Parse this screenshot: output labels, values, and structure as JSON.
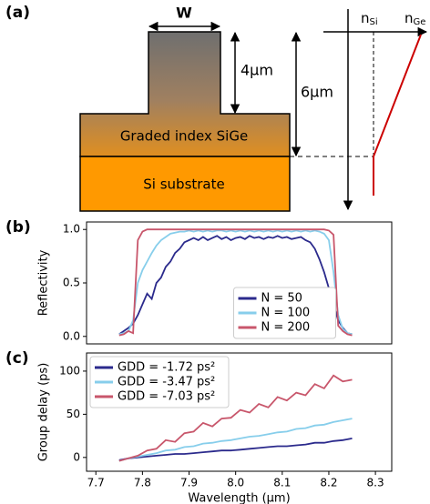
{
  "diagram": {
    "panel_label": "(a)",
    "width_label": "W",
    "ridge_height_label": "4μm",
    "total_height_label": "6μm",
    "graded_layer_label": "Graded index SiGe",
    "substrate_label": "Si substrate",
    "n_si": {
      "base": "n",
      "sub": "Si"
    },
    "n_ge": {
      "base": "n",
      "sub": "Ge"
    }
  },
  "chart_data": [
    {
      "type": "line",
      "panel_label": "(b)",
      "ylabel": "Reflectivity",
      "legend": "lower center",
      "x": [
        7.75,
        7.76,
        7.77,
        7.78,
        7.79,
        7.8,
        7.81,
        7.82,
        7.83,
        7.84,
        7.85,
        7.86,
        7.87,
        7.88,
        7.89,
        7.9,
        7.91,
        7.92,
        7.93,
        7.94,
        7.95,
        7.96,
        7.97,
        7.98,
        7.99,
        8.0,
        8.01,
        8.02,
        8.03,
        8.04,
        8.05,
        8.06,
        8.07,
        8.08,
        8.09,
        8.1,
        8.11,
        8.12,
        8.13,
        8.14,
        8.15,
        8.16,
        8.17,
        8.18,
        8.19,
        8.2,
        8.21,
        8.22,
        8.23,
        8.24,
        8.25
      ],
      "xlim": [
        7.68,
        8.335
      ],
      "ylim": [
        -0.07,
        1.07
      ],
      "yticks": [
        {
          "value": 0,
          "label": "0.0"
        },
        0.5,
        {
          "value": 1,
          "label": "1.0"
        }
      ],
      "series": [
        {
          "name": "N = 50",
          "color": "#2b2a8c",
          "values": [
            0.02,
            0.05,
            0.08,
            0.12,
            0.2,
            0.3,
            0.4,
            0.35,
            0.5,
            0.55,
            0.65,
            0.7,
            0.78,
            0.82,
            0.88,
            0.9,
            0.92,
            0.9,
            0.93,
            0.9,
            0.92,
            0.94,
            0.91,
            0.93,
            0.9,
            0.92,
            0.93,
            0.91,
            0.94,
            0.92,
            0.93,
            0.91,
            0.93,
            0.92,
            0.94,
            0.92,
            0.93,
            0.91,
            0.92,
            0.93,
            0.9,
            0.88,
            0.82,
            0.72,
            0.6,
            0.45,
            0.3,
            0.15,
            0.08,
            0.03,
            0.02
          ]
        },
        {
          "name": "N = 100",
          "color": "#87ceeb",
          "values": [
            0.02,
            0.03,
            0.05,
            0.15,
            0.5,
            0.62,
            0.7,
            0.78,
            0.85,
            0.9,
            0.93,
            0.96,
            0.97,
            0.98,
            0.98,
            0.99,
            0.98,
            0.99,
            0.98,
            0.99,
            0.98,
            0.99,
            0.99,
            0.98,
            0.99,
            0.98,
            0.99,
            0.98,
            0.99,
            0.98,
            0.99,
            0.98,
            0.99,
            0.98,
            0.99,
            0.98,
            0.99,
            0.98,
            0.99,
            0.98,
            0.99,
            0.98,
            0.99,
            0.98,
            0.96,
            0.9,
            0.6,
            0.2,
            0.07,
            0.03,
            0.02
          ]
        },
        {
          "name": "N = 200",
          "color": "#c8566b",
          "values": [
            0.01,
            0.02,
            0.05,
            0.03,
            0.9,
            0.98,
            1.0,
            1.0,
            1.0,
            1.0,
            1.0,
            1.0,
            1.0,
            1.0,
            1.0,
            1.0,
            1.0,
            1.0,
            1.0,
            1.0,
            1.0,
            1.0,
            1.0,
            1.0,
            1.0,
            1.0,
            1.0,
            1.0,
            1.0,
            1.0,
            1.0,
            1.0,
            1.0,
            1.0,
            1.0,
            1.0,
            1.0,
            1.0,
            1.0,
            1.0,
            1.0,
            1.0,
            1.0,
            1.0,
            1.0,
            0.99,
            0.95,
            0.1,
            0.05,
            0.02,
            0.01
          ]
        }
      ]
    },
    {
      "type": "line",
      "panel_label": "(c)",
      "ylabel": "Group delay (ps)",
      "xlabel": "Wavelength (μm)",
      "legend": "upper left",
      "x": [
        7.75,
        7.77,
        7.79,
        7.81,
        7.83,
        7.85,
        7.87,
        7.89,
        7.91,
        7.93,
        7.95,
        7.97,
        7.99,
        8.01,
        8.03,
        8.05,
        8.07,
        8.09,
        8.11,
        8.13,
        8.15,
        8.17,
        8.19,
        8.21,
        8.23,
        8.25
      ],
      "xlim": [
        7.68,
        8.335
      ],
      "ylim": [
        -16,
        121
      ],
      "xticks": [
        7.7,
        7.8,
        7.9,
        {
          "value": 8,
          "label": "8.0"
        },
        8.1,
        8.2,
        8.3
      ],
      "yticks": [
        0,
        50,
        100
      ],
      "series": [
        {
          "name": "GDD = -1.72 ps²",
          "color": "#2b2a8c",
          "values": [
            -3,
            -1,
            0,
            1,
            2,
            3,
            4,
            4,
            5,
            6,
            7,
            8,
            8,
            9,
            10,
            11,
            12,
            13,
            13,
            14,
            15,
            17,
            17,
            19,
            20,
            22
          ]
        },
        {
          "name": "GDD = -3.47 ps²",
          "color": "#87ceeb",
          "values": [
            -4,
            -1,
            1,
            3,
            5,
            8,
            9,
            12,
            13,
            16,
            17,
            19,
            20,
            22,
            24,
            25,
            27,
            29,
            30,
            33,
            34,
            37,
            38,
            41,
            43,
            45
          ]
        },
        {
          "name": "GDD = -7.03 ps²",
          "color": "#c8566b",
          "values": [
            -4,
            -1,
            2,
            8,
            10,
            20,
            18,
            28,
            30,
            40,
            36,
            45,
            46,
            55,
            52,
            62,
            58,
            70,
            66,
            75,
            72,
            85,
            80,
            95,
            88,
            90
          ]
        }
      ]
    }
  ]
}
